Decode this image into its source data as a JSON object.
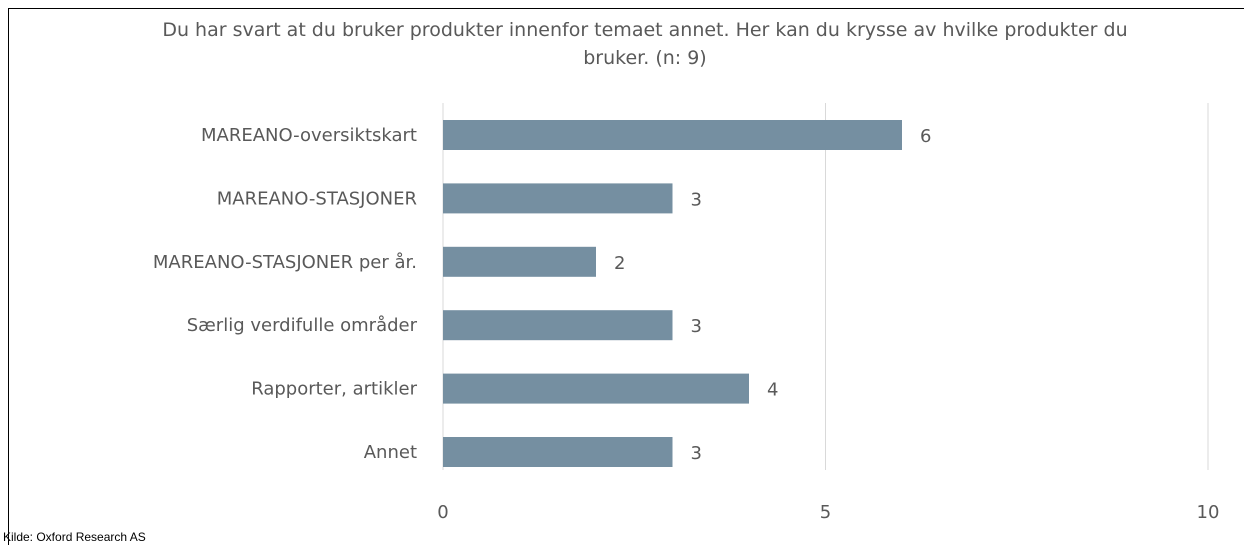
{
  "chart_data": {
    "type": "bar",
    "orientation": "horizontal",
    "title": "Du har svart at du bruker produkter innenfor temaet annet. Her kan du krysse av hvilke produkter du bruker. (n: 9)",
    "categories": [
      "MAREANO-oversiktskart",
      "MAREANO-STASJONER",
      "MAREANO-STASJONER per år.",
      "Særlig verdifulle områder",
      "Rapporter, artikler",
      "Annet"
    ],
    "values": [
      6,
      3,
      2,
      3,
      4,
      3
    ],
    "color": "#758fa1",
    "xlim": [
      0,
      10
    ],
    "xticks": [
      0,
      5,
      10
    ],
    "grid": true,
    "source": "Kilde: Oxford Research AS"
  }
}
